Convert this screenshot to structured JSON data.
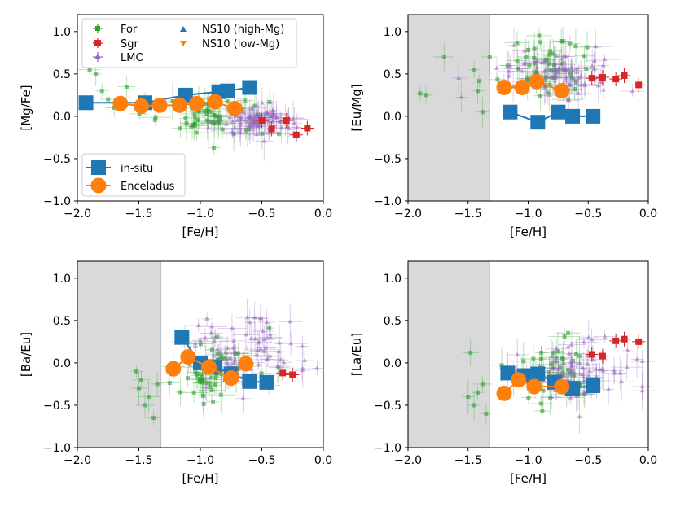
{
  "chart_data": [
    {
      "type": "scatter",
      "xlabel": "[Fe/H]",
      "ylabel": "[Mg/Fe]",
      "xlim": [
        -2.0,
        0.0
      ],
      "ylim": [
        -1.0,
        1.2
      ],
      "xticks": [
        "−2.0",
        "−1.5",
        "−1.0",
        "−0.5",
        "0.0"
      ],
      "yticks": [
        "−1.0",
        "−0.5",
        "0.0",
        "0.5",
        "1.0"
      ],
      "shade": null,
      "clouds": [
        {
          "name": "For",
          "center": [
            -0.9,
            0.0
          ],
          "spread": [
            0.22,
            0.13
          ],
          "n": 55
        },
        {
          "name": "LMC",
          "center": [
            -0.55,
            -0.05
          ],
          "spread": [
            0.15,
            0.08
          ],
          "n": 80
        }
      ],
      "extra": {
        "name": "For",
        "points": [
          [
            -1.9,
            0.55
          ],
          [
            -1.85,
            0.5
          ],
          [
            -1.8,
            0.3
          ],
          [
            -1.75,
            0.2
          ],
          [
            -1.7,
            0.1
          ],
          [
            -1.6,
            0.35
          ],
          [
            -1.45,
            0.15
          ]
        ]
      },
      "sgr": [
        [
          -0.5,
          -0.05
        ],
        [
          -0.42,
          -0.15
        ],
        [
          -0.3,
          -0.05
        ],
        [
          -0.22,
          -0.22
        ],
        [
          -0.13,
          -0.14
        ]
      ],
      "insitu": {
        "x": [
          -1.93,
          -1.45,
          -1.12,
          -0.85,
          -0.78,
          -0.6
        ],
        "y": [
          0.16,
          0.16,
          0.25,
          0.29,
          0.3,
          0.34
        ]
      },
      "enceladus": {
        "x": [
          -1.65,
          -1.48,
          -1.33,
          -1.17,
          -1.03,
          -0.88,
          -0.72
        ],
        "y": [
          0.15,
          0.12,
          0.13,
          0.13,
          0.15,
          0.17,
          0.09
        ]
      }
    },
    {
      "type": "scatter",
      "xlabel": "[Fe/H]",
      "ylabel": "[Eu/Mg]",
      "xlim": [
        -2.0,
        0.0
      ],
      "ylim": [
        -1.0,
        1.2
      ],
      "xticks": [
        "−2.0",
        "−1.5",
        "−1.0",
        "−0.5",
        "0.0"
      ],
      "yticks": [
        "−1.0",
        "−0.5",
        "0.0",
        "0.5",
        "1.0"
      ],
      "shade": [
        -2.0,
        -1.32
      ],
      "clouds": [
        {
          "name": "For",
          "center": [
            -0.85,
            0.6
          ],
          "spread": [
            0.22,
            0.18
          ],
          "n": 55
        },
        {
          "name": "LMC",
          "center": [
            -0.75,
            0.5
          ],
          "spread": [
            0.25,
            0.12
          ],
          "n": 80
        }
      ],
      "extra": {
        "name": "For",
        "points": [
          [
            -1.9,
            0.27
          ],
          [
            -1.85,
            0.25
          ],
          [
            -1.7,
            0.7
          ],
          [
            -1.45,
            0.55
          ],
          [
            -1.42,
            0.3
          ],
          [
            -1.38,
            0.05
          ],
          [
            -1.32,
            0.7
          ]
        ]
      },
      "sgr": [
        [
          -0.47,
          0.45
        ],
        [
          -0.38,
          0.46
        ],
        [
          -0.27,
          0.44
        ],
        [
          -0.2,
          0.48
        ],
        [
          -0.08,
          0.37
        ]
      ],
      "insitu": {
        "x": [
          -1.15,
          -0.92,
          -0.75,
          -0.63,
          -0.46
        ],
        "y": [
          0.05,
          -0.07,
          0.05,
          0.0,
          0.0
        ]
      },
      "enceladus": {
        "x": [
          -1.2,
          -1.05,
          -0.93,
          -0.72
        ],
        "y": [
          0.34,
          0.34,
          0.41,
          0.3
        ]
      }
    },
    {
      "type": "scatter",
      "xlabel": "[Fe/H]",
      "ylabel": "[Ba/Eu]",
      "xlim": [
        -2.0,
        0.0
      ],
      "ylim": [
        -1.0,
        1.2
      ],
      "xticks": [
        "−2.0",
        "−1.5",
        "−1.0",
        "−0.5",
        "0.0"
      ],
      "yticks": [
        "−1.0",
        "−0.5",
        "0.0",
        "0.5",
        "1.0"
      ],
      "shade": [
        -2.0,
        -1.32
      ],
      "clouds": [
        {
          "name": "For",
          "center": [
            -0.85,
            -0.1
          ],
          "spread": [
            0.22,
            0.2
          ],
          "n": 55
        },
        {
          "name": "LMC",
          "center": [
            -0.6,
            0.1
          ],
          "spread": [
            0.25,
            0.22
          ],
          "n": 80
        }
      ],
      "extra": {
        "name": "For",
        "points": [
          [
            -1.52,
            -0.1
          ],
          [
            -1.5,
            -0.3
          ],
          [
            -1.48,
            -0.2
          ],
          [
            -1.45,
            -0.5
          ],
          [
            -1.42,
            -0.4
          ],
          [
            -1.38,
            -0.65
          ],
          [
            -1.35,
            -0.25
          ]
        ]
      },
      "sgr": [
        [
          -0.33,
          -0.12
        ],
        [
          -0.25,
          -0.14
        ]
      ],
      "insitu": {
        "x": [
          -1.15,
          -1.0,
          -0.88,
          -0.75,
          -0.6,
          -0.46
        ],
        "y": [
          0.3,
          0.0,
          -0.05,
          -0.13,
          -0.22,
          -0.23
        ]
      },
      "enceladus": {
        "x": [
          -1.22,
          -1.1,
          -0.93,
          -0.75,
          -0.63
        ],
        "y": [
          -0.07,
          0.07,
          -0.05,
          -0.18,
          -0.01
        ]
      }
    },
    {
      "type": "scatter",
      "xlabel": "[Fe/H]",
      "ylabel": "[La/Eu]",
      "xlim": [
        -2.0,
        0.0
      ],
      "ylim": [
        -1.0,
        1.2
      ],
      "xticks": [
        "−2.0",
        "−1.5",
        "−1.0",
        "−0.5",
        "0.0"
      ],
      "yticks": [
        "−1.0",
        "−0.5",
        "0.0",
        "0.5",
        "1.0"
      ],
      "shade": [
        -2.0,
        -1.32
      ],
      "clouds": [
        {
          "name": "For",
          "center": [
            -0.85,
            -0.15
          ],
          "spread": [
            0.22,
            0.18
          ],
          "n": 55
        },
        {
          "name": "LMC",
          "center": [
            -0.6,
            -0.1
          ],
          "spread": [
            0.25,
            0.16
          ],
          "n": 80
        }
      ],
      "extra": {
        "name": "For",
        "points": [
          [
            -1.5,
            -0.4
          ],
          [
            -1.48,
            0.12
          ],
          [
            -1.45,
            -0.5
          ],
          [
            -1.42,
            -0.35
          ],
          [
            -1.38,
            -0.25
          ],
          [
            -1.35,
            -0.6
          ]
        ]
      },
      "sgr": [
        [
          -0.47,
          0.1
        ],
        [
          -0.38,
          0.08
        ],
        [
          -0.27,
          0.26
        ],
        [
          -0.2,
          0.28
        ],
        [
          -0.08,
          0.25
        ]
      ],
      "insitu": {
        "x": [
          -1.17,
          -1.03,
          -0.92,
          -0.78,
          -0.63,
          -0.46
        ],
        "y": [
          -0.12,
          -0.15,
          -0.13,
          -0.23,
          -0.3,
          -0.27
        ]
      },
      "enceladus": {
        "x": [
          -1.2,
          -1.08,
          -0.95,
          -0.72
        ],
        "y": [
          -0.36,
          -0.2,
          -0.28,
          -0.28
        ]
      }
    }
  ],
  "legend_top": {
    "items": [
      {
        "label": "For",
        "color": "#2ca02c",
        "marker": "plus-square"
      },
      {
        "label": "Sgr",
        "color": "#d62728",
        "marker": "square"
      },
      {
        "label": "LMC",
        "color": "#9467bd",
        "marker": "triangle"
      },
      {
        "label": "NS10 (high-Mg)",
        "color": "#1f77b4",
        "marker": "triangle-up"
      },
      {
        "label": "NS10 (low-Mg)",
        "color": "#ff7f0e",
        "marker": "triangle-down"
      }
    ]
  },
  "legend_bottom": {
    "items": [
      {
        "label": "in-situ",
        "color": "#1f77b4",
        "marker": "big-square"
      },
      {
        "label": "Enceladus",
        "color": "#ff7f0e",
        "marker": "big-circle"
      }
    ]
  },
  "colors": {
    "for": "#2ca02c",
    "sgr": "#d62728",
    "lmc": "#9467bd",
    "insitu": "#1f77b4",
    "enceladus": "#ff7f0e",
    "shade": "#d9d9d9"
  }
}
